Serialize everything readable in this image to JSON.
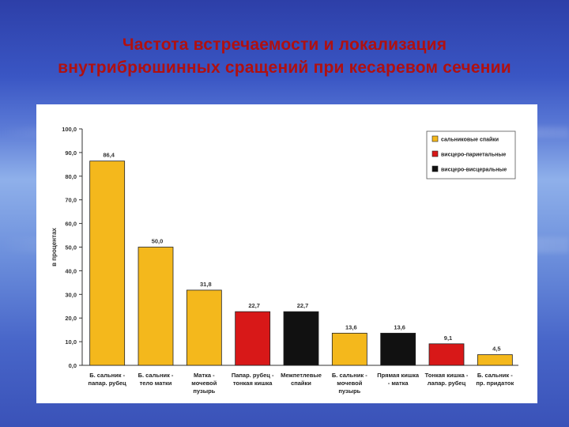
{
  "slide": {
    "title_line1": "Частота встречаемости и локализация",
    "title_line2": "внутрибрюшинных сращений при кесаревом сечении"
  },
  "colors": {
    "yellow": "#f4b81c",
    "red": "#d81818",
    "black": "#111111",
    "title": "#b01010"
  },
  "chart_data": {
    "type": "bar",
    "ylabel": "в процентах",
    "ylim": [
      0,
      100
    ],
    "yticks": [
      "0,0",
      "10,0",
      "20,0",
      "30,0",
      "40,0",
      "50,0",
      "60,0",
      "70,0",
      "80,0",
      "90,0",
      "100,0"
    ],
    "grid": false,
    "legend_position": "top-right",
    "legend": [
      {
        "label": "сальниковые спайки",
        "color": "#f4b81c"
      },
      {
        "label": "висцеро-париетальные",
        "color": "#d81818"
      },
      {
        "label": "висцеро-висцеральные",
        "color": "#111111"
      }
    ],
    "categories": [
      [
        "Б. сальник -",
        "папар. рубец"
      ],
      [
        "Б. сальник -",
        "тело матки"
      ],
      [
        "Матка -",
        "мочевой",
        "пузырь"
      ],
      [
        "Папар. рубец -",
        "тонкая кишка"
      ],
      [
        "Межпетлевые",
        "спайки"
      ],
      [
        "Б. сальник -",
        "мочевой",
        "пузырь"
      ],
      [
        "Прямая кишка",
        "- матка"
      ],
      [
        "Тонкая кишка -",
        "лапар. рубец"
      ],
      [
        "Б. сальник -",
        "пр. придаток"
      ]
    ],
    "values": [
      86.4,
      50.0,
      31.8,
      22.7,
      22.7,
      13.6,
      13.6,
      9.1,
      4.5
    ],
    "value_labels": [
      "86,4",
      "50,0",
      "31,8",
      "22,7",
      "22,7",
      "13,6",
      "13,6",
      "9,1",
      "4,5"
    ],
    "bar_colors": [
      "#f4b81c",
      "#f4b81c",
      "#f4b81c",
      "#d81818",
      "#111111",
      "#f4b81c",
      "#111111",
      "#d81818",
      "#f4b81c"
    ]
  }
}
